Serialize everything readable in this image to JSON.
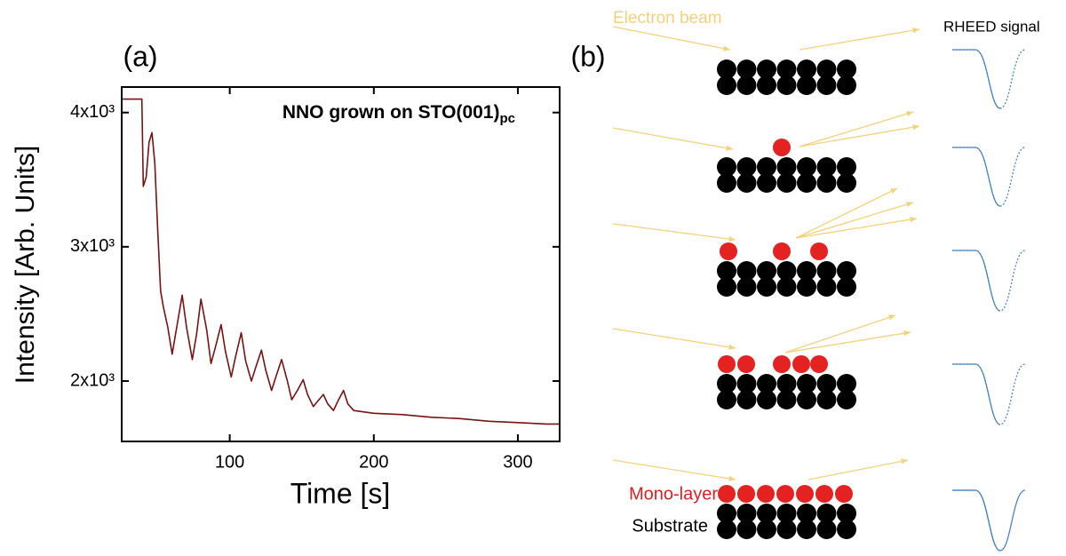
{
  "chart_data": {
    "type": "line",
    "panel_label": "(a)",
    "annotation": {
      "text": "NNO grown on STO(001)",
      "subscript": "pc"
    },
    "xlabel": "Time [s]",
    "ylabel": "Intensity [Arb. Units]",
    "x": [
      25,
      39,
      40,
      42,
      44,
      46,
      48,
      50,
      52,
      54,
      57,
      60,
      64,
      67,
      70,
      74,
      77,
      80,
      84,
      87,
      90,
      94,
      97,
      101,
      104,
      108,
      111,
      115,
      118,
      122,
      125,
      129,
      132,
      136,
      140,
      143,
      147,
      151,
      154,
      158,
      161,
      165,
      168,
      172,
      175,
      179,
      182,
      186,
      200,
      220,
      240,
      260,
      280,
      300,
      320,
      329
    ],
    "values": [
      4100,
      4100,
      3450,
      3520,
      3780,
      3850,
      3620,
      3130,
      2670,
      2550,
      2400,
      2200,
      2450,
      2640,
      2400,
      2160,
      2350,
      2610,
      2380,
      2130,
      2250,
      2420,
      2220,
      2030,
      2180,
      2360,
      2150,
      2000,
      2100,
      2230,
      2080,
      1930,
      2030,
      2160,
      2000,
      1860,
      1930,
      2010,
      1900,
      1810,
      1850,
      1900,
      1830,
      1780,
      1850,
      1930,
      1830,
      1780,
      1760,
      1750,
      1730,
      1720,
      1700,
      1690,
      1680,
      1680
    ],
    "color": "#7a1212",
    "xlim": [
      25,
      329
    ],
    "ylim": [
      1550,
      4190
    ],
    "xticks": [
      100,
      200,
      300
    ],
    "yticks": [
      {
        "value": 2000,
        "label": "2x10³"
      },
      {
        "value": 3000,
        "label": "3x10³"
      },
      {
        "value": 4000,
        "label": "4x10³"
      }
    ]
  },
  "diagram": {
    "panel_label": "(b)",
    "beam_label": "Electron beam",
    "signal_label": "RHEED signal",
    "layer_label": "Mono-layer",
    "substrate_label": "Substrate"
  }
}
